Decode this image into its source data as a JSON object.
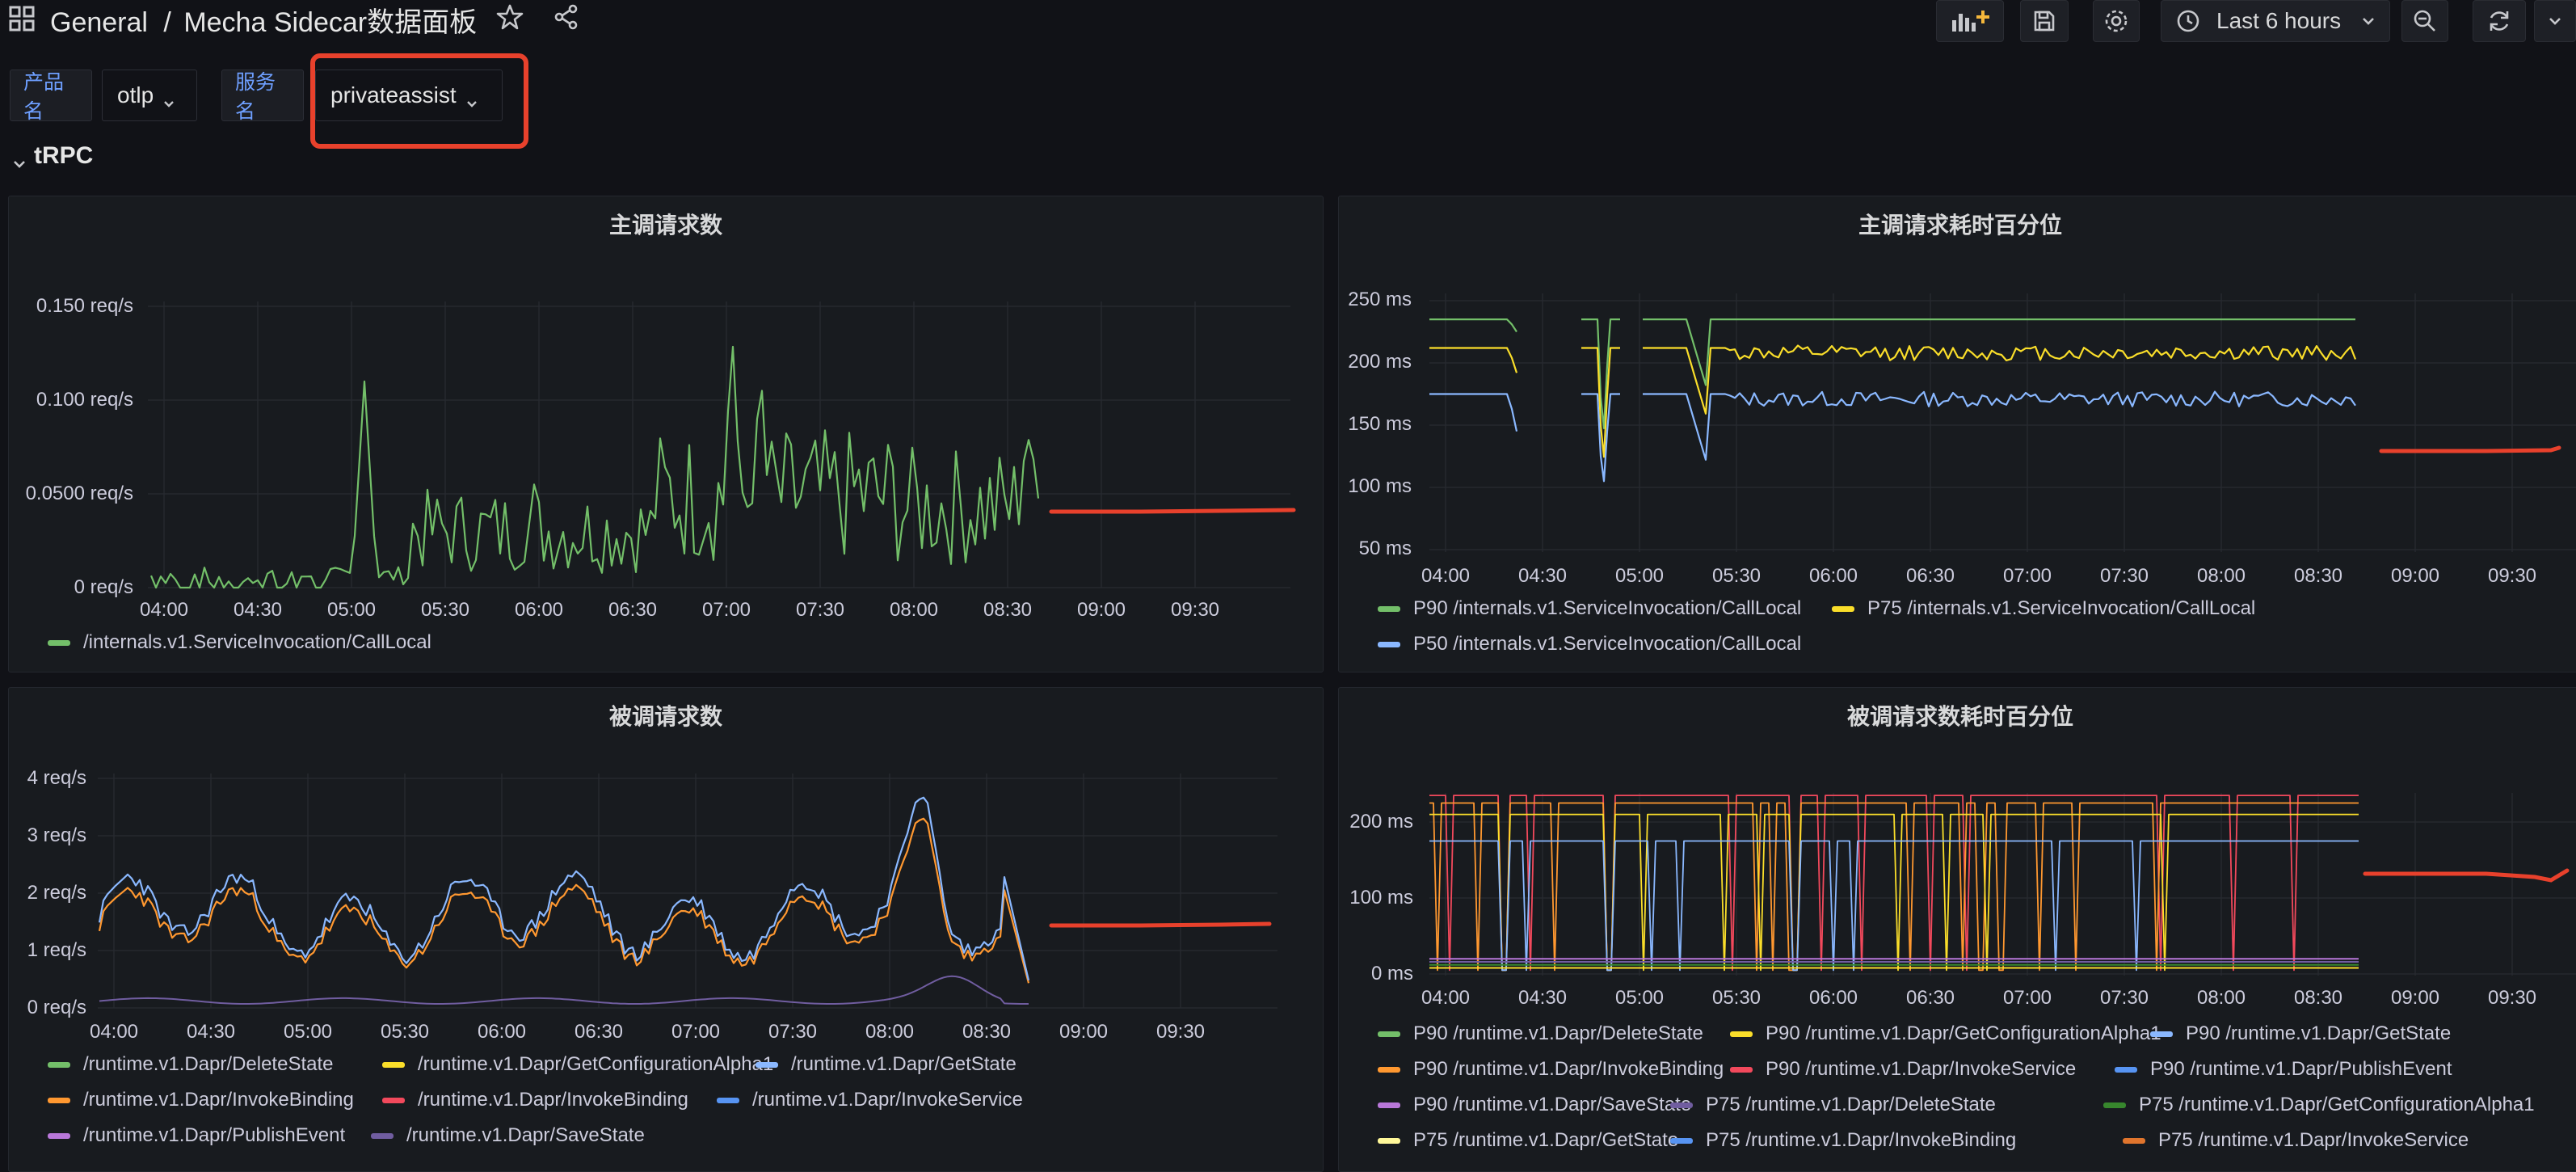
{
  "header": {
    "folder": "General",
    "separator": "/",
    "dashboard_title": "Mecha Sidecar数据面板",
    "time_range": "Last 6 hours"
  },
  "variables": [
    {
      "label": "产品名",
      "value": "otlp"
    },
    {
      "label": "服务名",
      "value": "privateassist"
    }
  ],
  "row": {
    "title": "tRPC"
  },
  "colors": {
    "green": "#73bf69",
    "yellow": "#fade2a",
    "blue": "#8ab8ff",
    "orange": "#ff9830",
    "red": "#f2495c",
    "blue2": "#5794f2",
    "purple": "#b877d9",
    "slate": "#705da0",
    "darkgreen": "#37872d",
    "annot_red": "#e8412c"
  },
  "panels": [
    {
      "title": "主调请求数",
      "y_ticks": [
        "0.150 req/s",
        "0.100 req/s",
        "0.0500 req/s",
        "0 req/s"
      ],
      "x_ticks": [
        "04:00",
        "04:30",
        "05:00",
        "05:30",
        "06:00",
        "06:30",
        "07:00",
        "07:30",
        "08:00",
        "08:30",
        "09:00",
        "09:30"
      ],
      "legend": [
        {
          "name": "/internals.v1.ServiceInvocation/CallLocal",
          "color": "#73bf69"
        }
      ]
    },
    {
      "title": "主调请求耗时百分位",
      "y_ticks": [
        "250 ms",
        "200 ms",
        "150 ms",
        "100 ms",
        "50 ms"
      ],
      "x_ticks": [
        "04:00",
        "04:30",
        "05:00",
        "05:30",
        "06:00",
        "06:30",
        "07:00",
        "07:30",
        "08:00",
        "08:30",
        "09:00",
        "09:30"
      ],
      "legend": [
        {
          "name": "P90 /internals.v1.ServiceInvocation/CallLocal",
          "color": "#73bf69"
        },
        {
          "name": "P75 /internals.v1.ServiceInvocation/CallLocal",
          "color": "#fade2a"
        },
        {
          "name": "P50 /internals.v1.ServiceInvocation/CallLocal",
          "color": "#8ab8ff"
        }
      ]
    },
    {
      "title": "被调请求数",
      "y_ticks": [
        "4 req/s",
        "3 req/s",
        "2 req/s",
        "1 req/s",
        "0 req/s"
      ],
      "x_ticks": [
        "04:00",
        "04:30",
        "05:00",
        "05:30",
        "06:00",
        "06:30",
        "07:00",
        "07:30",
        "08:00",
        "08:30",
        "09:00",
        "09:30"
      ],
      "legend": [
        {
          "name": "/runtime.v1.Dapr/DeleteState",
          "color": "#73bf69"
        },
        {
          "name": "/runtime.v1.Dapr/GetConfigurationAlpha1",
          "color": "#fade2a"
        },
        {
          "name": "/runtime.v1.Dapr/GetState",
          "color": "#8ab8ff"
        },
        {
          "name": "/runtime.v1.Dapr/InvokeBinding",
          "color": "#ff9830"
        },
        {
          "name": "/runtime.v1.Dapr/InvokeBinding",
          "color": "#f2495c"
        },
        {
          "name": "/runtime.v1.Dapr/InvokeService",
          "color": "#5794f2"
        },
        {
          "name": "/runtime.v1.Dapr/PublishEvent",
          "color": "#b877d9"
        },
        {
          "name": "/runtime.v1.Dapr/SaveState",
          "color": "#705da0"
        }
      ]
    },
    {
      "title": "被调请求数耗时百分位",
      "y_ticks": [
        "200 ms",
        "100 ms",
        "0 ms"
      ],
      "x_ticks": [
        "04:00",
        "04:30",
        "05:00",
        "05:30",
        "06:00",
        "06:30",
        "07:00",
        "07:30",
        "08:00",
        "08:30",
        "09:00",
        "09:30"
      ],
      "legend": [
        {
          "name": "P90 /runtime.v1.Dapr/DeleteState",
          "color": "#73bf69"
        },
        {
          "name": "P90 /runtime.v1.Dapr/GetConfigurationAlpha1",
          "color": "#fade2a"
        },
        {
          "name": "P90 /runtime.v1.Dapr/GetState",
          "color": "#8ab8ff"
        },
        {
          "name": "P90 /runtime.v1.Dapr/InvokeBinding",
          "color": "#ff9830"
        },
        {
          "name": "P90 /runtime.v1.Dapr/InvokeService",
          "color": "#f2495c"
        },
        {
          "name": "P90 /runtime.v1.Dapr/PublishEvent",
          "color": "#5794f2"
        },
        {
          "name": "P90 /runtime.v1.Dapr/SaveState",
          "color": "#b877d9"
        },
        {
          "name": "P75 /runtime.v1.Dapr/DeleteState",
          "color": "#705da0"
        },
        {
          "name": "P75 /runtime.v1.Dapr/GetConfigurationAlpha1",
          "color": "#37872d"
        },
        {
          "name": "P75 /runtime.v1.Dapr/GetState",
          "color": "#fff899"
        },
        {
          "name": "P75 /runtime.v1.Dapr/InvokeBinding",
          "color": "#5794f2"
        },
        {
          "name": "P75 /runtime.v1.Dapr/InvokeService",
          "color": "#e0752d"
        }
      ]
    }
  ],
  "chart_data": [
    {
      "type": "line",
      "title": "主调请求数",
      "ylim": [
        0,
        0.15
      ],
      "x": [
        "04:00",
        "04:30",
        "05:00",
        "05:30",
        "06:00",
        "06:30",
        "07:00",
        "07:30",
        "08:00",
        "08:30"
      ],
      "series": [
        {
          "name": "/internals.v1.ServiceInvocation/CallLocal",
          "values": [
            0.005,
            0.01,
            0.005,
            0.02,
            0.04,
            0.05,
            0.065,
            0.055,
            0.06,
            0.05
          ]
        }
      ]
    },
    {
      "type": "line",
      "title": "主调请求耗时百分位",
      "ylim": [
        50,
        250
      ],
      "x": [
        "04:00",
        "04:30",
        "05:00",
        "05:30",
        "06:00",
        "06:30",
        "07:00",
        "07:30",
        "08:00",
        "08:30"
      ],
      "series": [
        {
          "name": "P90 /internals.v1.ServiceInvocation/CallLocal",
          "values": [
            235,
            235,
            235,
            235,
            235,
            235,
            235,
            235,
            235,
            235
          ]
        },
        {
          "name": "P75 /internals.v1.ServiceInvocation/CallLocal",
          "values": [
            212,
            212,
            212,
            212,
            210,
            212,
            212,
            212,
            212,
            212
          ]
        },
        {
          "name": "P50 /internals.v1.ServiceInvocation/CallLocal",
          "values": [
            175,
            175,
            175,
            175,
            170,
            175,
            175,
            175,
            175,
            175
          ]
        }
      ]
    },
    {
      "type": "line",
      "title": "被调请求数",
      "ylim": [
        0,
        4
      ],
      "x": [
        "04:00",
        "04:30",
        "05:00",
        "05:30",
        "06:00",
        "06:30",
        "07:00",
        "07:30",
        "08:00",
        "08:30"
      ],
      "series": [
        {
          "name": "/runtime.v1.Dapr/GetState",
          "values": [
            1.2,
            1.8,
            2.2,
            2.0,
            2.0,
            2.1,
            2.4,
            2.2,
            3.5,
            1.5
          ]
        },
        {
          "name": "/runtime.v1.Dapr/InvokeBinding",
          "values": [
            1.1,
            1.7,
            2.1,
            1.9,
            1.9,
            2.0,
            2.2,
            2.0,
            2.7,
            1.4
          ]
        },
        {
          "name": "/runtime.v1.Dapr/SaveState",
          "values": [
            0.1,
            0.15,
            0.1,
            0.12,
            0.1,
            0.12,
            0.15,
            0.3,
            0.6,
            0.2
          ]
        }
      ]
    },
    {
      "type": "line",
      "title": "被调请求数耗时百分位",
      "ylim": [
        0,
        250
      ],
      "x": [
        "04:00",
        "04:30",
        "05:00",
        "05:30",
        "06:00",
        "06:30",
        "07:00",
        "07:30",
        "08:00",
        "08:30"
      ],
      "series": [
        {
          "name": "P90 /runtime.v1.Dapr/InvokeService",
          "values": [
            235,
            235,
            235,
            235,
            235,
            235,
            235,
            235,
            235,
            235
          ]
        },
        {
          "name": "P90 /runtime.v1.Dapr/InvokeBinding",
          "values": [
            210,
            210,
            210,
            210,
            210,
            210,
            210,
            210,
            210,
            210
          ]
        },
        {
          "name": "P90 /runtime.v1.Dapr/GetState",
          "values": [
            175,
            175,
            175,
            175,
            175,
            175,
            175,
            175,
            175,
            175
          ]
        },
        {
          "name": "P90 /runtime.v1.Dapr/SaveState",
          "values": [
            20,
            20,
            20,
            20,
            20,
            20,
            20,
            20,
            20,
            20
          ]
        }
      ]
    }
  ]
}
